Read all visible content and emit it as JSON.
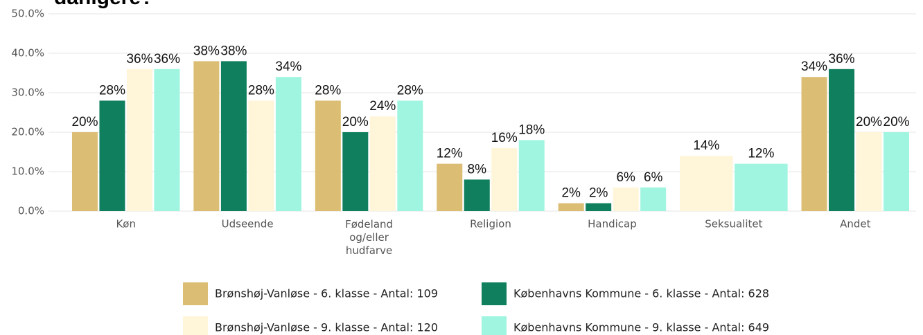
{
  "chart_data": {
    "type": "bar",
    "title": "danigere?",
    "categories": [
      "Køn",
      "Udseende",
      "Fødeland og/eller hudfarve",
      "Religion",
      "Handicap",
      "Seksualitet",
      "Andet"
    ],
    "series": [
      {
        "name": "Brønshøj-Vanløse - 6. klasse - Antal: 109",
        "color": "#dbbe74",
        "values": [
          20,
          38,
          28,
          12,
          2,
          null,
          34
        ],
        "value_labels": [
          "20%",
          "38%",
          "28%",
          "12%",
          "2%",
          null,
          "34%"
        ]
      },
      {
        "name": "Københavns Kommune - 6. klasse - Antal: 628",
        "color": "#0f7f5d",
        "values": [
          28,
          38,
          20,
          8,
          2,
          null,
          36
        ],
        "value_labels": [
          "28%",
          "38%",
          "20%",
          "8%",
          "2%",
          null,
          "36%"
        ]
      },
      {
        "name": "Brønshøj-Vanløse - 9. klasse - Antal: 120",
        "color": "#fff5d9",
        "values": [
          36,
          28,
          24,
          16,
          6,
          14,
          20
        ],
        "value_labels": [
          "36%",
          "28%",
          "24%",
          "16%",
          "6%",
          "14%",
          "20%"
        ]
      },
      {
        "name": "Københavns Kommune - 9. klasse - Antal: 649",
        "color": "#9ff5df",
        "values": [
          36,
          34,
          28,
          18,
          6,
          12,
          20
        ],
        "value_labels": [
          "36%",
          "34%",
          "28%",
          "18%",
          "6%",
          "12%",
          "20%"
        ]
      }
    ],
    "ylim": [
      0,
      50
    ],
    "yticks": [
      {
        "value": 0,
        "label": "0.0%"
      },
      {
        "value": 10,
        "label": "10.0%"
      },
      {
        "value": 20,
        "label": "20.0%"
      },
      {
        "value": 30,
        "label": "30.0%"
      },
      {
        "value": 40,
        "label": "40.0%"
      },
      {
        "value": 50,
        "label": "50.0%"
      }
    ],
    "grid": true
  }
}
